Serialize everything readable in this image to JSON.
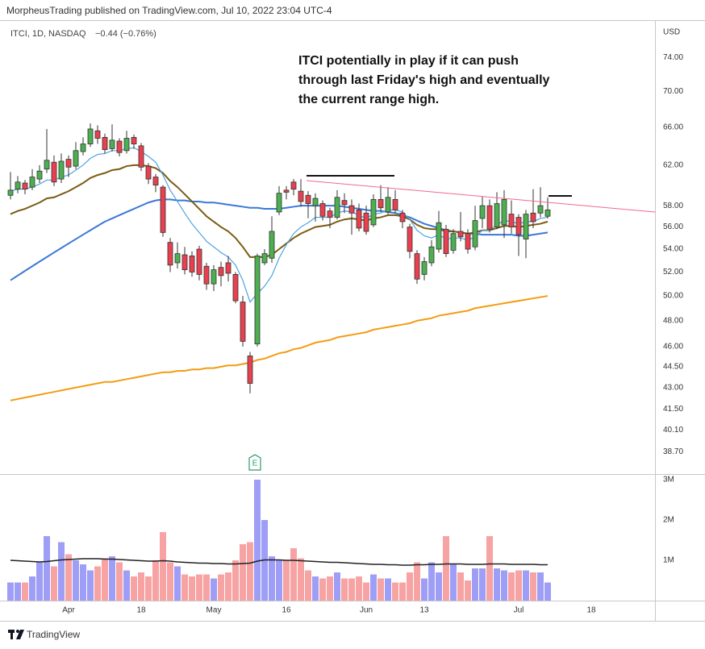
{
  "chart_data": {
    "type": "candlestick",
    "header": "MorpheusTrading published on TradingView.com, Jul 10, 2022 23:04 UTC-4",
    "symbol": "ITCI, 1D, NASDAQ",
    "change": "−0.44 (−0.76%)",
    "unit": "USD",
    "annotation": [
      "ITCI potentially in play if it can push",
      "through last Friday's high and eventually",
      "the current range high."
    ],
    "earnings_marker": "E",
    "footer": "TradingView",
    "log_scale": true,
    "grid": false,
    "up_color": "#4caf50",
    "down_color": "#e8404f",
    "ylim": [
      37.3,
      78.7
    ],
    "yticks": [
      {
        "value": 74,
        "label": "74.00"
      },
      {
        "value": 70,
        "label": "70.00"
      },
      {
        "value": 66,
        "label": "66.00"
      },
      {
        "value": 62,
        "label": "62.00"
      },
      {
        "value": 58,
        "label": "58.00"
      },
      {
        "value": 56,
        "label": "56.00"
      },
      {
        "value": 54,
        "label": "54.00"
      },
      {
        "value": 52,
        "label": "52.00"
      },
      {
        "value": 50,
        "label": "50.00"
      },
      {
        "value": 48,
        "label": "48.00"
      },
      {
        "value": 46,
        "label": "46.00"
      },
      {
        "value": 44.5,
        "label": "44.50"
      },
      {
        "value": 43,
        "label": "43.00"
      },
      {
        "value": 41.5,
        "label": "41.50"
      },
      {
        "value": 40.1,
        "label": "40.10"
      },
      {
        "value": 38.7,
        "label": "38.70"
      }
    ],
    "categories": [
      null,
      null,
      null,
      null,
      null,
      null,
      null,
      null,
      "Apr",
      null,
      null,
      null,
      null,
      null,
      null,
      null,
      null,
      null,
      "18",
      null,
      null,
      null,
      null,
      null,
      null,
      null,
      null,
      null,
      "May",
      null,
      null,
      null,
      null,
      null,
      null,
      null,
      null,
      null,
      "16",
      null,
      null,
      null,
      null,
      null,
      null,
      null,
      null,
      null,
      null,
      "Jun",
      null,
      null,
      null,
      null,
      null,
      null,
      null,
      "13",
      null,
      null,
      null,
      null,
      null,
      null,
      null,
      null,
      null,
      null,
      null,
      null,
      "Jul",
      null,
      null,
      null,
      null,
      null,
      null,
      null,
      null,
      null,
      "18"
    ],
    "open": [
      59.0,
      59.6,
      60.2,
      59.8,
      60.6,
      61.6,
      62.3,
      60.6,
      62.6,
      61.9,
      63.4,
      64.2,
      65.6,
      64.9,
      63.7,
      64.5,
      63.5,
      64.9,
      64.0,
      61.9,
      60.8,
      59.8,
      54.6,
      52.8,
      53.5,
      53.4,
      54.0,
      52.5,
      51.0,
      52.4,
      52.8,
      51.8,
      49.5,
      45.3,
      46.2,
      52.8,
      53.2,
      57.4,
      59.5,
      60.3,
      59.4,
      59.0,
      58.0,
      58.2,
      57.5,
      56.9,
      58.5,
      58.0,
      57.6,
      57.3,
      56.2,
      58.6,
      57.4,
      58.6,
      57.3,
      56.0,
      53.6,
      51.8,
      52.8,
      54.0,
      55.8,
      53.9,
      55.6,
      55.4,
      54.2,
      56.8,
      58.0,
      56.0,
      56.2,
      57.2,
      56.9,
      54.9,
      57.3,
      57.3,
      57.0,
      null,
      null,
      null,
      null,
      null,
      null
    ],
    "high": [
      61.3,
      60.9,
      60.5,
      61.6,
      62.0,
      65.8,
      63.0,
      63.2,
      63.0,
      64.4,
      64.9,
      66.4,
      66.2,
      65.3,
      66.3,
      64.8,
      65.6,
      65.2,
      64.3,
      62.2,
      61.1,
      60.0,
      55.0,
      54.6,
      54.2,
      53.8,
      54.3,
      52.8,
      52.6,
      52.9,
      53.4,
      52.0,
      50.0,
      45.6,
      53.6,
      54.0,
      57.0,
      59.9,
      59.9,
      60.6,
      60.6,
      59.4,
      59.2,
      58.5,
      57.8,
      59.5,
      59.2,
      58.6,
      58.2,
      58.0,
      59.1,
      60.0,
      59.8,
      59.5,
      57.6,
      56.3,
      53.9,
      53.3,
      54.8,
      57.5,
      56.2,
      55.8,
      57.4,
      55.8,
      58.0,
      58.9,
      58.6,
      59.3,
      59.5,
      58.5,
      57.2,
      57.6,
      59.6,
      59.8,
      58.8,
      null,
      null,
      null,
      null,
      null,
      null
    ],
    "low": [
      58.6,
      59.2,
      59.1,
      59.5,
      60.2,
      61.2,
      59.9,
      60.2,
      60.8,
      61.6,
      63.0,
      63.9,
      64.2,
      63.2,
      63.4,
      62.9,
      63.2,
      63.7,
      61.4,
      60.1,
      59.3,
      55.1,
      52.0,
      52.3,
      51.8,
      51.6,
      51.3,
      50.5,
      50.4,
      50.8,
      51.2,
      49.4,
      46.0,
      42.6,
      46.0,
      52.6,
      52.8,
      57.1,
      58.6,
      59.0,
      57.9,
      56.8,
      56.5,
      56.6,
      55.9,
      56.7,
      57.3,
      55.3,
      55.6,
      55.3,
      56.0,
      57.4,
      57.2,
      57.3,
      55.9,
      53.2,
      51.0,
      51.3,
      52.5,
      53.7,
      53.3,
      53.6,
      54.7,
      53.6,
      53.9,
      55.9,
      55.5,
      55.8,
      55.0,
      55.4,
      53.4,
      53.2,
      55.9,
      56.9,
      56.8,
      null,
      null,
      null,
      null,
      null,
      null
    ],
    "close": [
      59.5,
      60.3,
      59.6,
      60.8,
      61.4,
      62.5,
      60.3,
      62.4,
      61.8,
      63.5,
      64.2,
      65.8,
      64.8,
      63.6,
      64.6,
      63.3,
      64.8,
      64.2,
      61.8,
      60.6,
      60.0,
      55.5,
      52.6,
      53.6,
      52.2,
      52.0,
      51.8,
      51.0,
      52.2,
      51.7,
      51.9,
      49.6,
      46.4,
      43.3,
      53.4,
      53.6,
      55.6,
      59.2,
      59.3,
      59.6,
      58.4,
      58.2,
      58.7,
      57.0,
      56.9,
      58.8,
      58.1,
      57.3,
      55.9,
      55.6,
      58.6,
      57.8,
      58.8,
      57.6,
      56.5,
      53.8,
      51.4,
      52.9,
      54.2,
      56.4,
      53.6,
      55.4,
      55.1,
      54.0,
      56.6,
      58.0,
      55.8,
      58.2,
      58.6,
      56.0,
      55.3,
      57.2,
      56.5,
      58.0,
      57.6,
      null,
      null,
      null,
      null,
      null,
      null
    ],
    "moving_averages": [
      {
        "color": "#f39c12",
        "values": [
          42.1,
          42.2,
          42.3,
          42.4,
          42.5,
          42.6,
          42.7,
          42.8,
          42.9,
          43.0,
          43.1,
          43.2,
          43.3,
          43.4,
          43.4,
          43.5,
          43.6,
          43.7,
          43.8,
          43.9,
          44.0,
          44.1,
          44.1,
          44.2,
          44.2,
          44.3,
          44.3,
          44.4,
          44.4,
          44.5,
          44.6,
          44.6,
          44.7,
          44.8,
          45.0,
          45.1,
          45.3,
          45.5,
          45.6,
          45.8,
          45.9,
          46.1,
          46.3,
          46.4,
          46.5,
          46.7,
          46.8,
          46.9,
          47.0,
          47.1,
          47.3,
          47.4,
          47.5,
          47.6,
          47.7,
          47.8,
          48.0,
          48.1,
          48.2,
          48.4,
          48.5,
          48.6,
          48.7,
          48.8,
          49.0,
          49.1,
          49.2,
          49.3,
          49.4,
          49.5,
          49.6,
          49.7,
          49.8,
          49.9,
          50.0,
          null,
          null,
          null,
          null,
          null,
          null
        ]
      },
      {
        "color": "#3a78d8",
        "values": [
          51.3,
          51.7,
          52.1,
          52.5,
          52.9,
          53.3,
          53.7,
          54.1,
          54.5,
          54.9,
          55.3,
          55.7,
          56.1,
          56.5,
          56.8,
          57.1,
          57.4,
          57.7,
          58.0,
          58.3,
          58.5,
          58.6,
          58.6,
          58.5,
          58.5,
          58.4,
          58.4,
          58.3,
          58.3,
          58.2,
          58.1,
          58.0,
          57.9,
          57.8,
          57.8,
          57.7,
          57.7,
          57.7,
          57.8,
          57.9,
          58.0,
          58.0,
          58.0,
          58.0,
          58.0,
          58.0,
          57.9,
          57.8,
          57.7,
          57.6,
          57.5,
          57.5,
          57.4,
          57.3,
          57.1,
          56.9,
          56.6,
          56.3,
          56.1,
          55.9,
          55.7,
          55.6,
          55.5,
          55.4,
          55.4,
          55.3,
          55.3,
          55.3,
          55.3,
          55.3,
          55.2,
          55.2,
          55.3,
          55.4,
          55.5,
          null,
          null,
          null,
          null,
          null,
          null
        ]
      },
      {
        "color": "#7a5c12",
        "values": [
          57.2,
          57.5,
          57.7,
          58.0,
          58.3,
          58.7,
          58.8,
          59.1,
          59.4,
          59.8,
          60.2,
          60.7,
          61.0,
          61.2,
          61.5,
          61.6,
          61.9,
          62.0,
          62.0,
          61.9,
          61.7,
          61.2,
          60.4,
          59.8,
          59.1,
          58.4,
          57.7,
          57.0,
          56.5,
          56.0,
          55.6,
          55.0,
          54.2,
          53.3,
          53.3,
          53.3,
          53.5,
          54.0,
          54.5,
          55.0,
          55.4,
          55.7,
          56.0,
          56.1,
          56.2,
          56.5,
          56.7,
          56.8,
          56.7,
          56.6,
          56.8,
          56.9,
          57.1,
          57.1,
          57.0,
          56.7,
          56.2,
          55.9,
          55.8,
          55.8,
          55.6,
          55.6,
          55.5,
          55.4,
          55.5,
          55.7,
          55.7,
          55.9,
          56.1,
          56.1,
          56.0,
          56.1,
          56.2,
          56.3,
          56.5,
          null,
          null,
          null,
          null,
          null,
          null
        ]
      },
      {
        "color": "#4fa3e0",
        "values": [
          59.4,
          59.6,
          59.6,
          59.8,
          60.1,
          60.5,
          60.5,
          60.8,
          61.0,
          61.5,
          62.0,
          62.7,
          63.1,
          63.2,
          63.5,
          63.5,
          63.7,
          63.8,
          63.4,
          62.9,
          62.3,
          61.0,
          59.5,
          58.4,
          57.3,
          56.3,
          55.5,
          54.7,
          54.2,
          53.7,
          53.3,
          52.6,
          51.3,
          49.5,
          50.2,
          50.8,
          51.7,
          53.2,
          54.4,
          55.4,
          56.0,
          56.4,
          56.9,
          56.9,
          56.9,
          57.3,
          57.5,
          57.4,
          57.1,
          56.8,
          57.2,
          57.3,
          57.6,
          57.6,
          57.4,
          56.7,
          55.7,
          55.2,
          55.0,
          55.3,
          54.9,
          55.0,
          55.0,
          54.8,
          55.1,
          55.7,
          55.7,
          56.2,
          56.6,
          56.5,
          56.3,
          56.5,
          56.5,
          56.8,
          56.9,
          null,
          null,
          null,
          null,
          null,
          null
        ]
      }
    ],
    "volume": {
      "up_color": "#9e9ef7",
      "down_color": "#f7a3a3",
      "ylim": [
        0,
        3100000
      ],
      "yticks": [
        {
          "value": 3000000,
          "label": "3M"
        },
        {
          "value": 2000000,
          "label": "2M"
        },
        {
          "value": 1000000,
          "label": "1M"
        }
      ],
      "values": [
        450000,
        450000,
        450000,
        600000,
        950000,
        1600000,
        850000,
        1450000,
        1150000,
        1000000,
        900000,
        750000,
        850000,
        1050000,
        1100000,
        950000,
        750000,
        600000,
        700000,
        600000,
        1000000,
        1700000,
        950000,
        850000,
        650000,
        600000,
        650000,
        650000,
        550000,
        650000,
        700000,
        1000000,
        1400000,
        1450000,
        3000000,
        2000000,
        1100000,
        1000000,
        1000000,
        1300000,
        1050000,
        750000,
        600000,
        550000,
        600000,
        700000,
        550000,
        550000,
        600000,
        450000,
        650000,
        550000,
        550000,
        450000,
        450000,
        700000,
        950000,
        550000,
        950000,
        700000,
        1600000,
        900000,
        700000,
        500000,
        800000,
        800000,
        1600000,
        800000,
        750000,
        700000,
        750000,
        750000,
        700000,
        700000,
        450000,
        null,
        null,
        null,
        null,
        null,
        null
      ],
      "average": {
        "color": "#222222",
        "values": [
          1000000,
          990000,
          980000,
          970000,
          960000,
          970000,
          990000,
          1010000,
          1020000,
          1030000,
          1040000,
          1040000,
          1040000,
          1030000,
          1030000,
          1020000,
          1010000,
          1000000,
          990000,
          980000,
          980000,
          990000,
          980000,
          960000,
          950000,
          940000,
          930000,
          930000,
          920000,
          920000,
          910000,
          910000,
          920000,
          930000,
          980000,
          1010000,
          1010000,
          1010000,
          1000000,
          1000000,
          990000,
          980000,
          970000,
          960000,
          950000,
          950000,
          940000,
          930000,
          920000,
          910000,
          900000,
          900000,
          890000,
          890000,
          880000,
          880000,
          890000,
          890000,
          900000,
          900000,
          910000,
          910000,
          910000,
          900000,
          900000,
          900000,
          910000,
          910000,
          910000,
          900000,
          900000,
          900000,
          900000,
          890000,
          890000,
          null,
          null,
          null,
          null,
          null,
          null
        ]
      }
    }
  }
}
